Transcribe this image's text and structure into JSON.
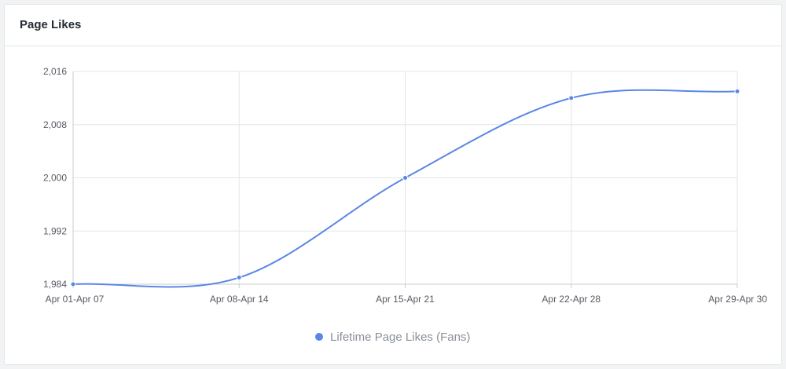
{
  "card": {
    "title": "Page Likes"
  },
  "colors": {
    "series": "#5b86e5",
    "grid": "#e3e5e8",
    "axis": "#c7cbd1"
  },
  "chart_data": {
    "type": "line",
    "title": "Page Likes",
    "xlabel": "",
    "ylabel": "",
    "categories": [
      "Apr 01-Apr 07",
      "Apr 08-Apr 14",
      "Apr 15-Apr 21",
      "Apr 22-Apr 28",
      "Apr 29-Apr 30"
    ],
    "series": [
      {
        "name": "Lifetime Page Likes (Fans)",
        "values": [
          1984,
          1985,
          2000,
          2012,
          2013
        ]
      }
    ],
    "ylim": [
      1984,
      2016
    ],
    "yticks": [
      1984,
      1992,
      2000,
      2008,
      2016
    ],
    "ytick_labels": [
      "1,984",
      "1,992",
      "2,000",
      "2,008",
      "2,016"
    ],
    "grid": true,
    "smooth": true,
    "legend": "bottom-center"
  }
}
